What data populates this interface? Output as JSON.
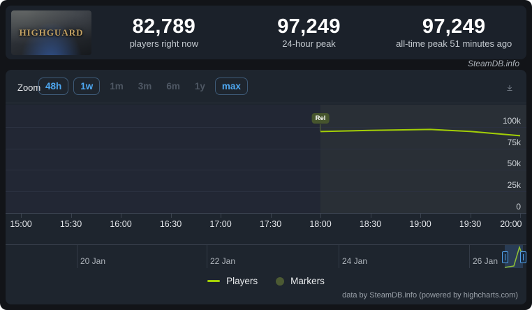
{
  "header": {
    "game_title": "HIGHGUARD",
    "stats": [
      {
        "value": "82,789",
        "label": "players right now"
      },
      {
        "value": "97,249",
        "label": "24-hour peak"
      },
      {
        "value": "97,249",
        "label": "all-time peak 51 minutes ago"
      }
    ]
  },
  "watermark": "SteamDB.info",
  "toolbar": {
    "zoom_label": "Zoom",
    "buttons": [
      {
        "label": "48h",
        "state": "active"
      },
      {
        "label": "1w",
        "state": "active"
      },
      {
        "label": "1m",
        "state": "disabled"
      },
      {
        "label": "3m",
        "state": "disabled"
      },
      {
        "label": "6m",
        "state": "disabled"
      },
      {
        "label": "1y",
        "state": "disabled"
      },
      {
        "label": "max",
        "state": "active"
      }
    ]
  },
  "chart": {
    "y_labels": [
      "100k",
      "75k",
      "50k",
      "25k",
      "0"
    ],
    "x_labels": [
      "15:00",
      "15:30",
      "16:00",
      "16:30",
      "17:00",
      "17:30",
      "18:00",
      "18:30",
      "19:00",
      "19:30",
      "20:00"
    ],
    "release_label": "Rel",
    "nav_dates": [
      "20 Jan",
      "22 Jan",
      "24 Jan",
      "26 Jan"
    ]
  },
  "chart_data": {
    "type": "line",
    "title": "Highguard concurrent players",
    "series": [
      {
        "name": "Players",
        "color": "#a3cf06",
        "points": [
          [
            "18:00",
            94800
          ],
          [
            "18:30",
            96200
          ],
          [
            "19:06",
            97249
          ],
          [
            "19:30",
            94900
          ],
          [
            "20:00",
            89900
          ]
        ]
      }
    ],
    "ylim": [
      0,
      105000
    ],
    "ytick_labels": [
      "0",
      "25k",
      "50k",
      "75k",
      "100k"
    ],
    "xtick_labels": [
      "15:00",
      "15:30",
      "16:00",
      "16:30",
      "17:00",
      "17:30",
      "18:00",
      "18:30",
      "19:00",
      "19:30",
      "20:00"
    ],
    "annotations": [
      {
        "label": "Rel",
        "x": "18:00"
      }
    ],
    "navigator_dates": [
      "20 Jan",
      "22 Jan",
      "24 Jan",
      "26 Jan"
    ],
    "legend_entries": [
      "Players",
      "Markers"
    ],
    "legend_position": "bottom",
    "grid": true
  },
  "legend": {
    "players": "Players",
    "markers": "Markers"
  },
  "footer": {
    "credit": "data by SteamDB.info (powered by highcharts.com)"
  },
  "colors": {
    "accent_line": "#a3cf06",
    "active_button_text": "#4ea7f0",
    "panel_bg": "#1e252e",
    "plot_bg": "#222734",
    "release_band": "rgba(170,200,95,0.055)",
    "navigator_selection": "#53a2ec",
    "release_badge_bg": "#46552d"
  }
}
